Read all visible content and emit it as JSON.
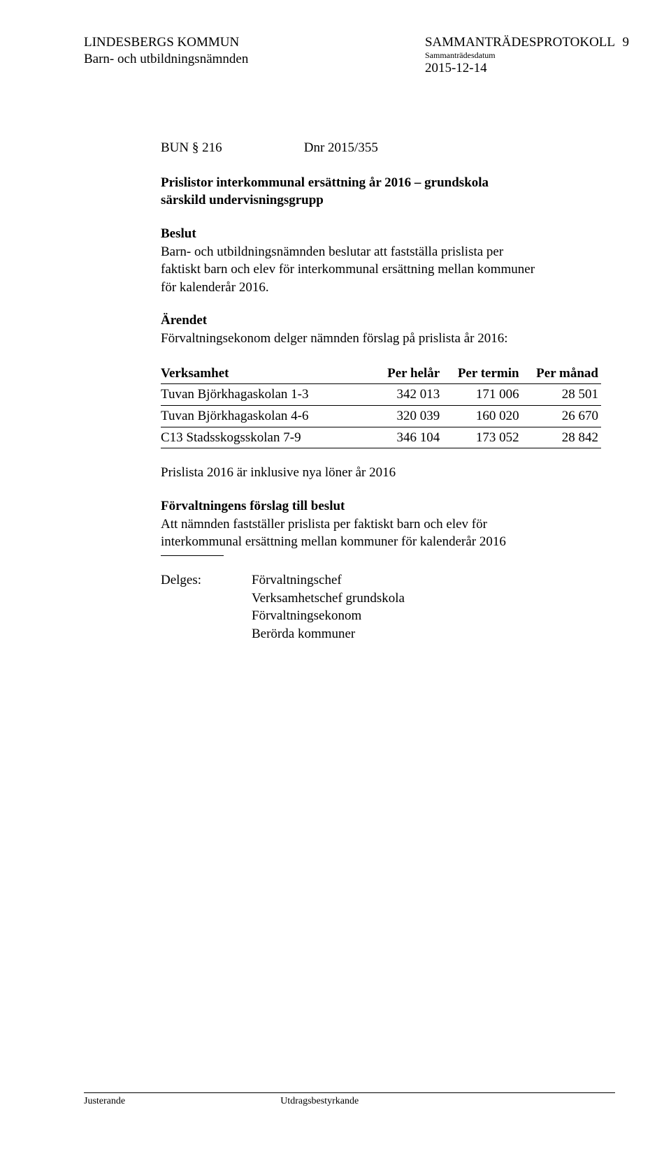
{
  "header": {
    "kommun": "LINDESBERGS KOMMUN",
    "namnden": "Barn- och utbildningsnämnden",
    "protokoll": "SAMMANTRÄDESPROTOKOLL",
    "sub": "Sammanträdesdatum",
    "datum": "2015-12-14",
    "page_number": "9"
  },
  "bun": {
    "label": "BUN § 216",
    "dnr": "Dnr 2015/355"
  },
  "title_line1": "Prislistor interkommunal ersättning år 2016 – grundskola",
  "title_line2": "särskild undervisningsgrupp",
  "beslut": {
    "label": "Beslut",
    "text1": "Barn- och utbildningsnämnden beslutar att fastställa prislista per",
    "text2": "faktiskt barn och elev för interkommunal ersättning mellan kommuner",
    "text3": "för kalenderår 2016."
  },
  "arendet": {
    "label": "Ärendet",
    "text": "Förvaltningsekonom delger nämnden förslag på prislista år 2016:"
  },
  "table": {
    "columns": [
      "Verksamhet",
      "Per helår",
      "Per termin",
      "Per månad"
    ],
    "rows": [
      [
        "Tuvan Björkhagaskolan 1-3",
        "342 013",
        "171 006",
        "28 501"
      ],
      [
        "Tuvan Björkhagaskolan 4-6",
        "320 039",
        "160 020",
        "26 670"
      ],
      [
        "C13 Stadsskogsskolan 7-9",
        "346 104",
        "173 052",
        "28 842"
      ]
    ]
  },
  "prislista_note": "Prislista 2016 är inklusive nya löner år 2016",
  "forslag": {
    "label": "Förvaltningens förslag till beslut",
    "text1": "Att nämnden fastställer prislista per faktiskt barn och elev för",
    "text2": "interkommunal ersättning mellan kommuner för kalenderår 2016"
  },
  "delges": {
    "label": "Delges:",
    "values": [
      "Förvaltningschef",
      "Verksamhetschef grundskola",
      "Förvaltningsekonom",
      "Berörda kommuner"
    ]
  },
  "footer": {
    "left": "Justerande",
    "right": "Utdragsbestyrkande"
  }
}
